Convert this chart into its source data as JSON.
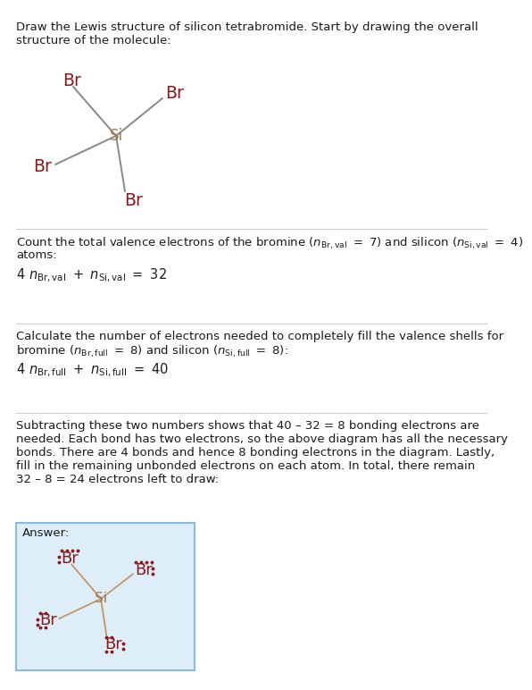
{
  "text_color": "#1a1a1a",
  "br_color": "#8B1A1A",
  "si_color": "#A07850",
  "bond_color1": "#888888",
  "bond_color2": "#C4956A",
  "bg_color": "#ffffff",
  "answer_bg": "#ddeef8",
  "answer_border": "#88bbdd",
  "line_color": "#cccccc",
  "title_line1": "Draw the Lewis structure of silicon tetrabromide. Start by drawing the overall",
  "title_line2": "structure of the molecule:",
  "s1_line1": "Count the total valence electrons of the bromine (n_Br,val = 7) and silicon (n_Si,val = 4)",
  "s1_line2": "atoms:",
  "s1_eq": "4 n_Br,val + n_Si,val = 32",
  "s2_line1": "Calculate the number of electrons needed to completely fill the valence shells for",
  "s2_line2": "bromine (n_Br,full = 8) and silicon (n_Si,full = 8):",
  "s2_eq": "4 n_Br,full + n_Si,full = 40",
  "s3_line1": "Subtracting these two numbers shows that 40 – 32 = 8 bonding electrons are",
  "s3_line2": "needed. Each bond has two electrons, so the above diagram has all the necessary",
  "s3_line3": "bonds. There are 4 bonds and hence 8 bonding electrons in the diagram. Lastly,",
  "s3_line4": "fill in the remaining unbonded electrons on each atom. In total, there remain",
  "s3_line5": "32 – 8 = 24 electrons left to draw:",
  "answer_label": "Answer:"
}
